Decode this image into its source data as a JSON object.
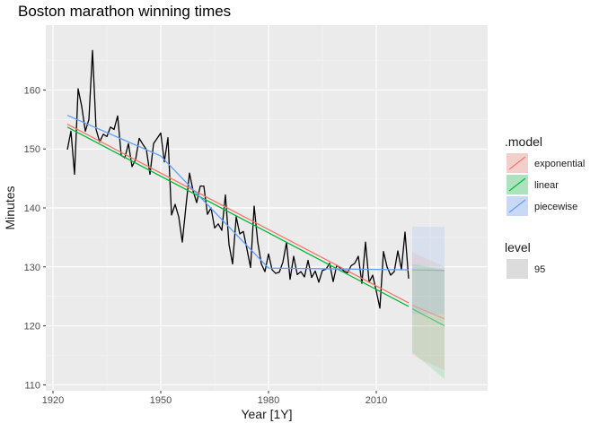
{
  "chart_data": {
    "type": "line",
    "title": "Boston marathon winning times",
    "xlabel": "Year [1Y]",
    "ylabel": "Minutes",
    "xlim": [
      1918,
      2041
    ],
    "ylim": [
      109,
      171
    ],
    "x_ticks": [
      1920,
      1950,
      1980,
      2010
    ],
    "y_ticks": [
      110,
      120,
      130,
      140,
      150,
      160
    ],
    "grid": true,
    "observed": {
      "name": "Minutes",
      "color": "#000000",
      "x": [
        1924,
        1925,
        1926,
        1927,
        1928,
        1929,
        1930,
        1931,
        1932,
        1933,
        1934,
        1935,
        1936,
        1937,
        1938,
        1939,
        1940,
        1941,
        1942,
        1943,
        1944,
        1945,
        1946,
        1947,
        1948,
        1949,
        1950,
        1951,
        1952,
        1953,
        1954,
        1955,
        1956,
        1957,
        1958,
        1959,
        1960,
        1961,
        1962,
        1963,
        1964,
        1965,
        1966,
        1967,
        1968,
        1969,
        1970,
        1971,
        1972,
        1973,
        1974,
        1975,
        1976,
        1977,
        1978,
        1979,
        1980,
        1981,
        1982,
        1983,
        1984,
        1985,
        1986,
        1987,
        1988,
        1989,
        1990,
        1991,
        1992,
        1993,
        1994,
        1995,
        1996,
        1997,
        1998,
        1999,
        2000,
        2001,
        2002,
        2003,
        2004,
        2005,
        2006,
        2007,
        2008,
        2009,
        2010,
        2011,
        2012,
        2013,
        2014,
        2015,
        2016,
        2017,
        2018,
        2019
      ],
      "y": [
        149.9,
        153.0,
        145.7,
        160.2,
        157.2,
        153.0,
        155.0,
        166.7,
        153.3,
        151.2,
        152.5,
        152.1,
        153.7,
        153.3,
        155.6,
        148.9,
        148.5,
        150.9,
        147.0,
        148.2,
        151.8,
        150.8,
        149.9,
        145.7,
        150.9,
        151.8,
        152.7,
        147.8,
        151.9,
        138.8,
        140.6,
        138.5,
        134.2,
        140.2,
        145.9,
        142.9,
        140.9,
        143.7,
        143.7,
        138.9,
        140.0,
        136.6,
        137.3,
        136.2,
        142.2,
        133.8,
        130.5,
        138.5,
        135.6,
        136.0,
        133.0,
        129.9,
        140.3,
        134.2,
        130.5,
        129.2,
        132.2,
        129.5,
        128.9,
        129.1,
        130.8,
        134.1,
        127.9,
        131.8,
        128.7,
        129.2,
        128.3,
        131.1,
        128.2,
        129.3,
        127.4,
        129.4,
        129.6,
        130.6,
        127.5,
        130.3,
        129.8,
        129.3,
        129.0,
        130.2,
        130.6,
        131.8,
        127.2,
        134.2,
        127.4,
        128.6,
        125.9,
        123.0,
        132.6,
        130.0,
        128.6,
        129.2,
        132.7,
        129.6,
        135.9,
        128.0
      ]
    },
    "fitted": [
      {
        "name": "exponential",
        "color": "#F8766D",
        "x": [
          1924,
          2019
        ],
        "y": [
          154.2,
          123.9
        ]
      },
      {
        "name": "linear",
        "color": "#00BA38",
        "x": [
          1924,
          2019
        ],
        "y": [
          153.7,
          123.3
        ]
      },
      {
        "name": "piecewise",
        "color": "#619CFF",
        "x": [
          1924,
          1950,
          1980,
          2019
        ],
        "y": [
          155.7,
          148.8,
          129.8,
          129.5
        ]
      }
    ],
    "forecasts": [
      {
        "model": "exponential",
        "color": "#F8766D",
        "x": [
          2020,
          2029
        ],
        "mean": [
          123.5,
          121.2
        ],
        "lower": [
          115.0,
          112.5
        ],
        "upper": [
          132.5,
          130.0
        ]
      },
      {
        "model": "linear",
        "color": "#00BA38",
        "x": [
          2020,
          2029
        ],
        "mean": [
          122.9,
          120.0
        ],
        "lower": [
          115.5,
          111.0
        ],
        "upper": [
          130.5,
          129.5
        ]
      },
      {
        "model": "piecewise",
        "color": "#619CFF",
        "x": [
          2020,
          2029
        ],
        "mean": [
          129.5,
          129.4
        ],
        "lower": [
          122.0,
          122.0
        ],
        "upper": [
          136.8,
          136.8
        ]
      }
    ],
    "legend": {
      "position": "right",
      "model_title": ".model",
      "models": [
        {
          "label": "exponential",
          "color": "#F8766D"
        },
        {
          "label": "linear",
          "color": "#00BA38"
        },
        {
          "label": "piecewise",
          "color": "#619CFF"
        }
      ],
      "level_title": "level",
      "levels": [
        {
          "label": "95"
        }
      ]
    }
  }
}
